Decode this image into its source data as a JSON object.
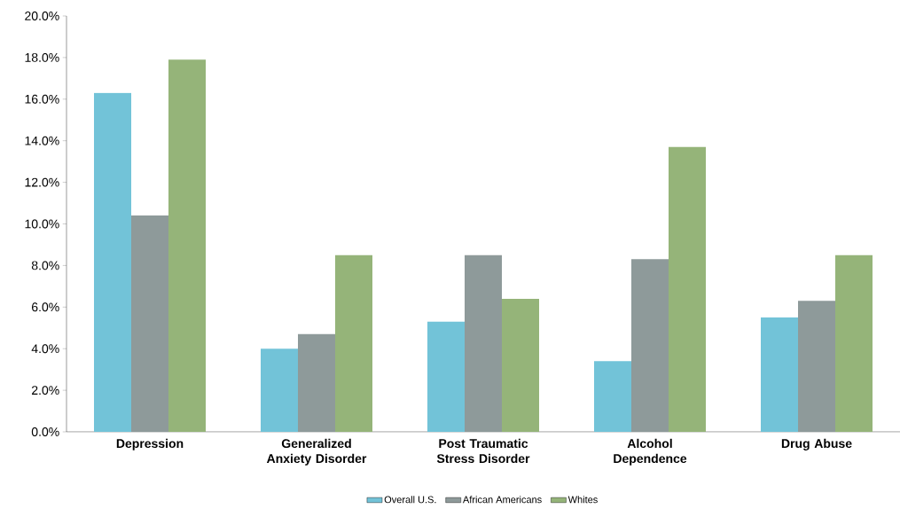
{
  "chart_data": {
    "type": "bar",
    "categories": [
      "Depression",
      "Generalized Anxiety Disorder",
      "Post Traumatic Stress Disorder",
      "Alcohol Dependence",
      "Drug Abuse"
    ],
    "series": [
      {
        "name": "Overall U.S.",
        "color": "#72c3d8",
        "values": [
          16.3,
          4.0,
          5.3,
          3.4,
          5.5
        ]
      },
      {
        "name": "African Americans",
        "color": "#8e9a9a",
        "values": [
          10.4,
          4.7,
          8.5,
          8.3,
          6.3
        ]
      },
      {
        "name": "Whites",
        "color": "#95b479",
        "values": [
          17.9,
          8.5,
          6.4,
          13.7,
          8.5
        ]
      }
    ],
    "ylim": [
      0,
      20
    ],
    "yticks": [
      {
        "value": 0,
        "label": "0.0%"
      },
      {
        "value": 2,
        "label": "2.0%"
      },
      {
        "value": 4,
        "label": "4.0%"
      },
      {
        "value": 6,
        "label": "6.0%"
      },
      {
        "value": 8,
        "label": "8.0%"
      },
      {
        "value": 10,
        "label": "10.0%"
      },
      {
        "value": 12,
        "label": "12.0%"
      },
      {
        "value": 14,
        "label": "14.0%"
      },
      {
        "value": 16,
        "label": "16.0%"
      },
      {
        "value": 18,
        "label": "18.0%"
      },
      {
        "value": 20,
        "label": "20.0%"
      }
    ],
    "grid": false,
    "legend": "bottom"
  }
}
